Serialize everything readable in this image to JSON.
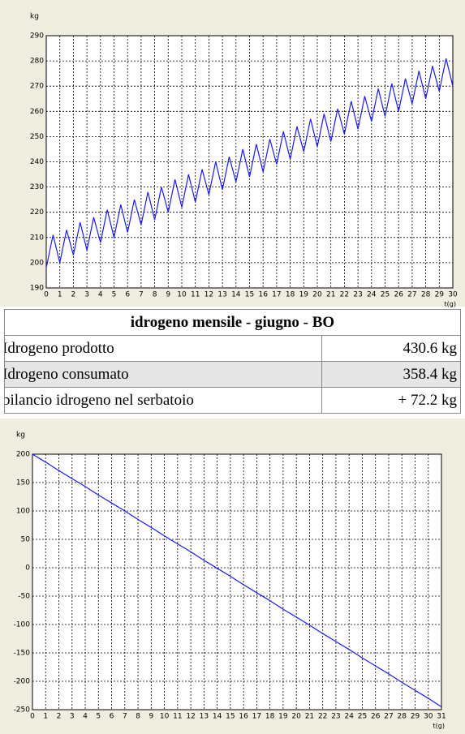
{
  "chart_data": [
    {
      "type": "line",
      "ylabel": "kg",
      "xlabel": "t(g)",
      "x": [
        0,
        0.5,
        1,
        1.5,
        2,
        2.5,
        3,
        3.5,
        4,
        4.5,
        5,
        5.5,
        6,
        6.5,
        7,
        7.5,
        8,
        8.5,
        9,
        9.5,
        10,
        10.5,
        11,
        11.5,
        12,
        12.5,
        13,
        13.5,
        14,
        14.5,
        15,
        15.5,
        16,
        16.5,
        17,
        17.5,
        18,
        18.5,
        19,
        19.5,
        20,
        20.5,
        21,
        21.5,
        22,
        22.5,
        23,
        23.5,
        24,
        24.5,
        25,
        25.5,
        26,
        26.5,
        27,
        27.5,
        28,
        28.5,
        29,
        29.5,
        30
      ],
      "values": [
        198,
        211,
        200,
        213,
        203,
        216,
        205,
        218,
        208,
        221,
        210,
        223,
        212,
        225,
        215,
        228,
        217,
        230,
        220,
        233,
        222,
        235,
        224,
        237,
        227,
        240,
        229,
        242,
        232,
        245,
        234,
        247,
        236,
        249,
        239,
        252,
        241,
        254,
        244,
        257,
        246,
        259,
        248,
        261,
        251,
        264,
        253,
        266,
        256,
        269,
        258,
        271,
        260,
        273,
        263,
        276,
        265,
        278,
        268,
        281,
        270
      ],
      "color": "#1a1aff",
      "xlim": [
        0,
        30
      ],
      "xticks": [
        0,
        1,
        2,
        3,
        4,
        5,
        6,
        7,
        8,
        9,
        10,
        11,
        12,
        13,
        14,
        15,
        16,
        17,
        18,
        19,
        20,
        21,
        22,
        23,
        24,
        25,
        26,
        27,
        28,
        29,
        30
      ],
      "ylim": [
        190,
        290
      ],
      "yticks": [
        190,
        200,
        210,
        220,
        230,
        240,
        250,
        260,
        270,
        280,
        290
      ],
      "grid": true
    },
    {
      "type": "line",
      "ylabel": "kg",
      "xlabel": "t(g)",
      "x": [
        0,
        1,
        2,
        3,
        4,
        5,
        6,
        7,
        8,
        9,
        10,
        11,
        12,
        13,
        14,
        15,
        16,
        17,
        18,
        19,
        20,
        21,
        22,
        23,
        24,
        25,
        26,
        27,
        28,
        29,
        30,
        31
      ],
      "values": [
        200,
        186,
        171,
        157,
        143,
        128,
        114,
        100,
        85,
        71,
        56,
        42,
        28,
        13,
        -1,
        -15,
        -30,
        -44,
        -58,
        -73,
        -87,
        -101,
        -116,
        -130,
        -144,
        -159,
        -173,
        -187,
        -202,
        -216,
        -230,
        -245
      ],
      "color": "#1a1aff",
      "xlim": [
        0,
        31
      ],
      "xticks": [
        0,
        1,
        2,
        3,
        4,
        5,
        6,
        7,
        8,
        9,
        10,
        11,
        12,
        13,
        14,
        15,
        16,
        17,
        18,
        19,
        20,
        21,
        22,
        23,
        24,
        25,
        26,
        27,
        28,
        29,
        30,
        31
      ],
      "ylim": [
        -250,
        200
      ],
      "yticks": [
        -250,
        -200,
        -150,
        -100,
        -50,
        0,
        50,
        100,
        150,
        200
      ],
      "grid": true
    }
  ],
  "table": {
    "title": "idrogeno mensile - giugno - BO",
    "rows": [
      [
        "Idrogeno prodotto",
        "430.6 kg"
      ],
      [
        "Idrogeno consumato",
        "358.4 kg"
      ],
      [
        "bilancio idrogeno nel serbatoio",
        "+ 72.2 kg"
      ]
    ]
  }
}
